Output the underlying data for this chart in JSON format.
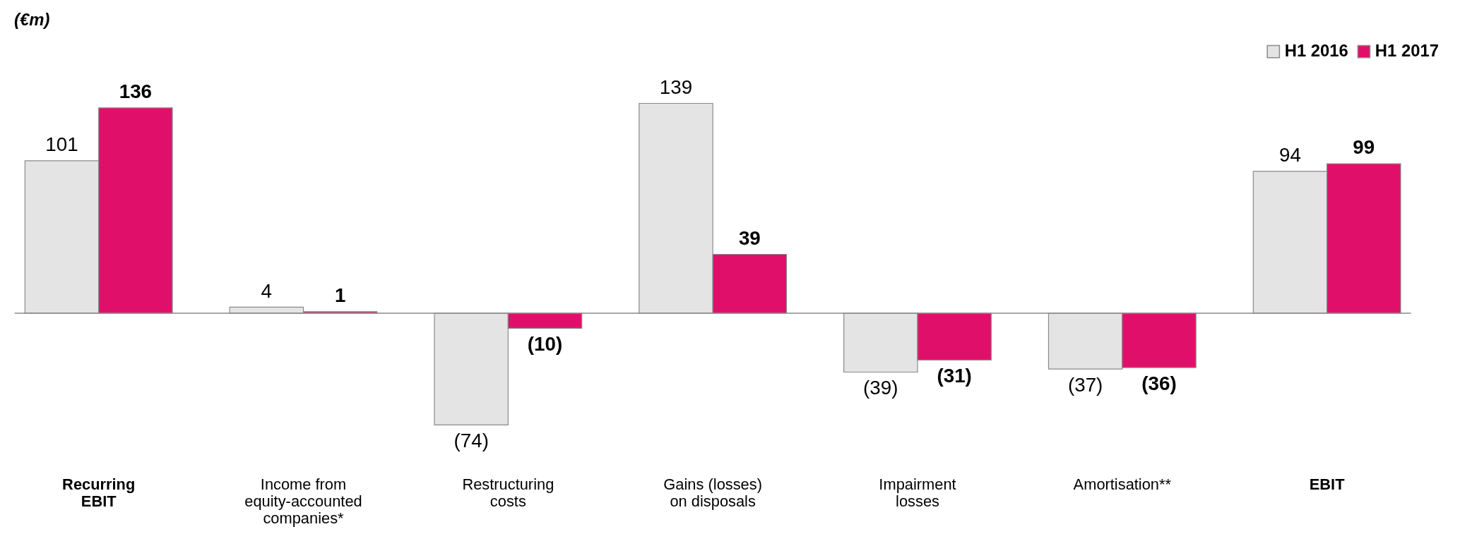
{
  "chart_data": {
    "type": "bar",
    "ylabel": "(€m)",
    "categories": [
      "Recurring\nEBIT",
      "Income from\nequity-accounted\ncompanies*",
      "Restructuring\ncosts",
      "Gains (losses)\non disposals",
      "Impairment\nlosses",
      "Amortisation**",
      "EBIT"
    ],
    "series": [
      {
        "name": "H1 2016",
        "color": "#e4e4e4",
        "values": [
          101,
          4,
          -74,
          139,
          -39,
          -37,
          94
        ],
        "value_labels": [
          "101",
          "4",
          "(74)",
          "139",
          "(39)",
          "(37)",
          "94"
        ]
      },
      {
        "name": "H1 2017",
        "color": "#e0106a",
        "values": [
          136,
          1,
          -10,
          39,
          -31,
          -36,
          99
        ],
        "value_labels": [
          "136",
          "1",
          "(10)",
          "39",
          "(31)",
          "(36)",
          "99"
        ]
      }
    ],
    "legend": "top right"
  }
}
